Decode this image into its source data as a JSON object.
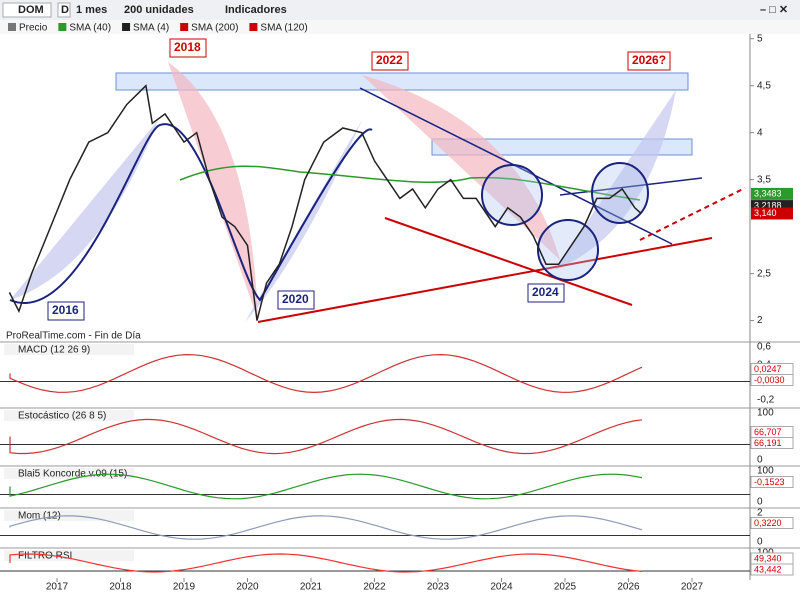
{
  "toolbar": {
    "symbol": "DOM",
    "mode": "D",
    "period": "1 mes",
    "units": "200 unidades",
    "indicators": "Indicadores"
  },
  "legend": [
    "Precio",
    "SMA (40)",
    "SMA (4)",
    "SMA (200)",
    "SMA (120)"
  ],
  "annotations": {
    "a2018": "2018",
    "a2022": "2022",
    "a2026": "2026?",
    "a2016": "2016",
    "a2020": "2020",
    "a2024": "2024"
  },
  "source": "ProRealTime.com - Fin de Día",
  "price": {
    "x": [
      2016.25,
      2016.4,
      2016.6,
      2016.9,
      2017.2,
      2017.5,
      2017.8,
      2018.1,
      2018.4,
      2018.5,
      2018.7,
      2019.0,
      2019.2,
      2019.4,
      2019.6,
      2019.8,
      2020.0,
      2020.15,
      2020.3,
      2020.5,
      2020.7,
      2020.9,
      2021.2,
      2021.5,
      2021.8,
      2022.0,
      2022.2,
      2022.4,
      2022.6,
      2022.8,
      2023.0,
      2023.2,
      2023.4,
      2023.6,
      2023.9,
      2024.1,
      2024.3,
      2024.5,
      2024.7,
      2024.9,
      2025.1,
      2025.3,
      2025.5,
      2025.7,
      2025.9,
      2026.1,
      2026.2
    ],
    "values": [
      2.3,
      2.1,
      2.5,
      3.0,
      3.5,
      3.9,
      4.0,
      4.3,
      4.5,
      4.1,
      4.2,
      3.9,
      4.0,
      3.5,
      3.1,
      3.0,
      2.8,
      2.0,
      2.4,
      2.6,
      3.0,
      3.5,
      3.9,
      4.05,
      4.0,
      3.7,
      3.5,
      3.3,
      3.4,
      3.2,
      3.4,
      3.5,
      3.3,
      3.3,
      3.0,
      3.2,
      3.1,
      2.9,
      2.6,
      2.6,
      2.8,
      3.0,
      3.3,
      3.3,
      3.4,
      3.2,
      3.14
    ],
    "ylim": [
      1.9,
      5.05
    ],
    "yticks": [
      5,
      {
        "value": 4.5,
        "label": "4,5"
      },
      4,
      {
        "value": 3.5,
        "label": "3,5"
      },
      {
        "value": 2.5,
        "label": "2,5"
      },
      2
    ],
    "price_labels": [
      {
        "value": 3.3483,
        "label": "3,3483"
      },
      {
        "value": 3.2188,
        "label": "3,2188"
      },
      {
        "value": 3.14,
        "label": "3,140"
      }
    ]
  },
  "xticks": [
    2017,
    2018,
    2019,
    2020,
    2021,
    2022,
    2023,
    2024,
    2025,
    2026,
    2027
  ],
  "panels": [
    {
      "title": "MACD (12 26 9)",
      "ticks": [
        "0,6",
        "0,4",
        "0,2",
        "-0,2"
      ],
      "labels": [
        "0,0247",
        "-0,0030"
      ]
    },
    {
      "title": "Estocástico (26 8 5)",
      "ticks": [
        "100",
        "0"
      ],
      "labels": [
        "66,707",
        "66,191"
      ]
    },
    {
      "title": "Blai5 Koncorde v.09 (15)",
      "ticks": [
        "100",
        "0"
      ],
      "labels": [
        "-0,1523"
      ]
    },
    {
      "title": "Mom (12)",
      "ticks": [
        "2",
        "0"
      ],
      "labels": [
        "0,3220"
      ]
    },
    {
      "title": "FILTRO RSI",
      "ticks": [
        "100"
      ],
      "labels": [
        "49,340",
        "43,442"
      ]
    }
  ]
}
